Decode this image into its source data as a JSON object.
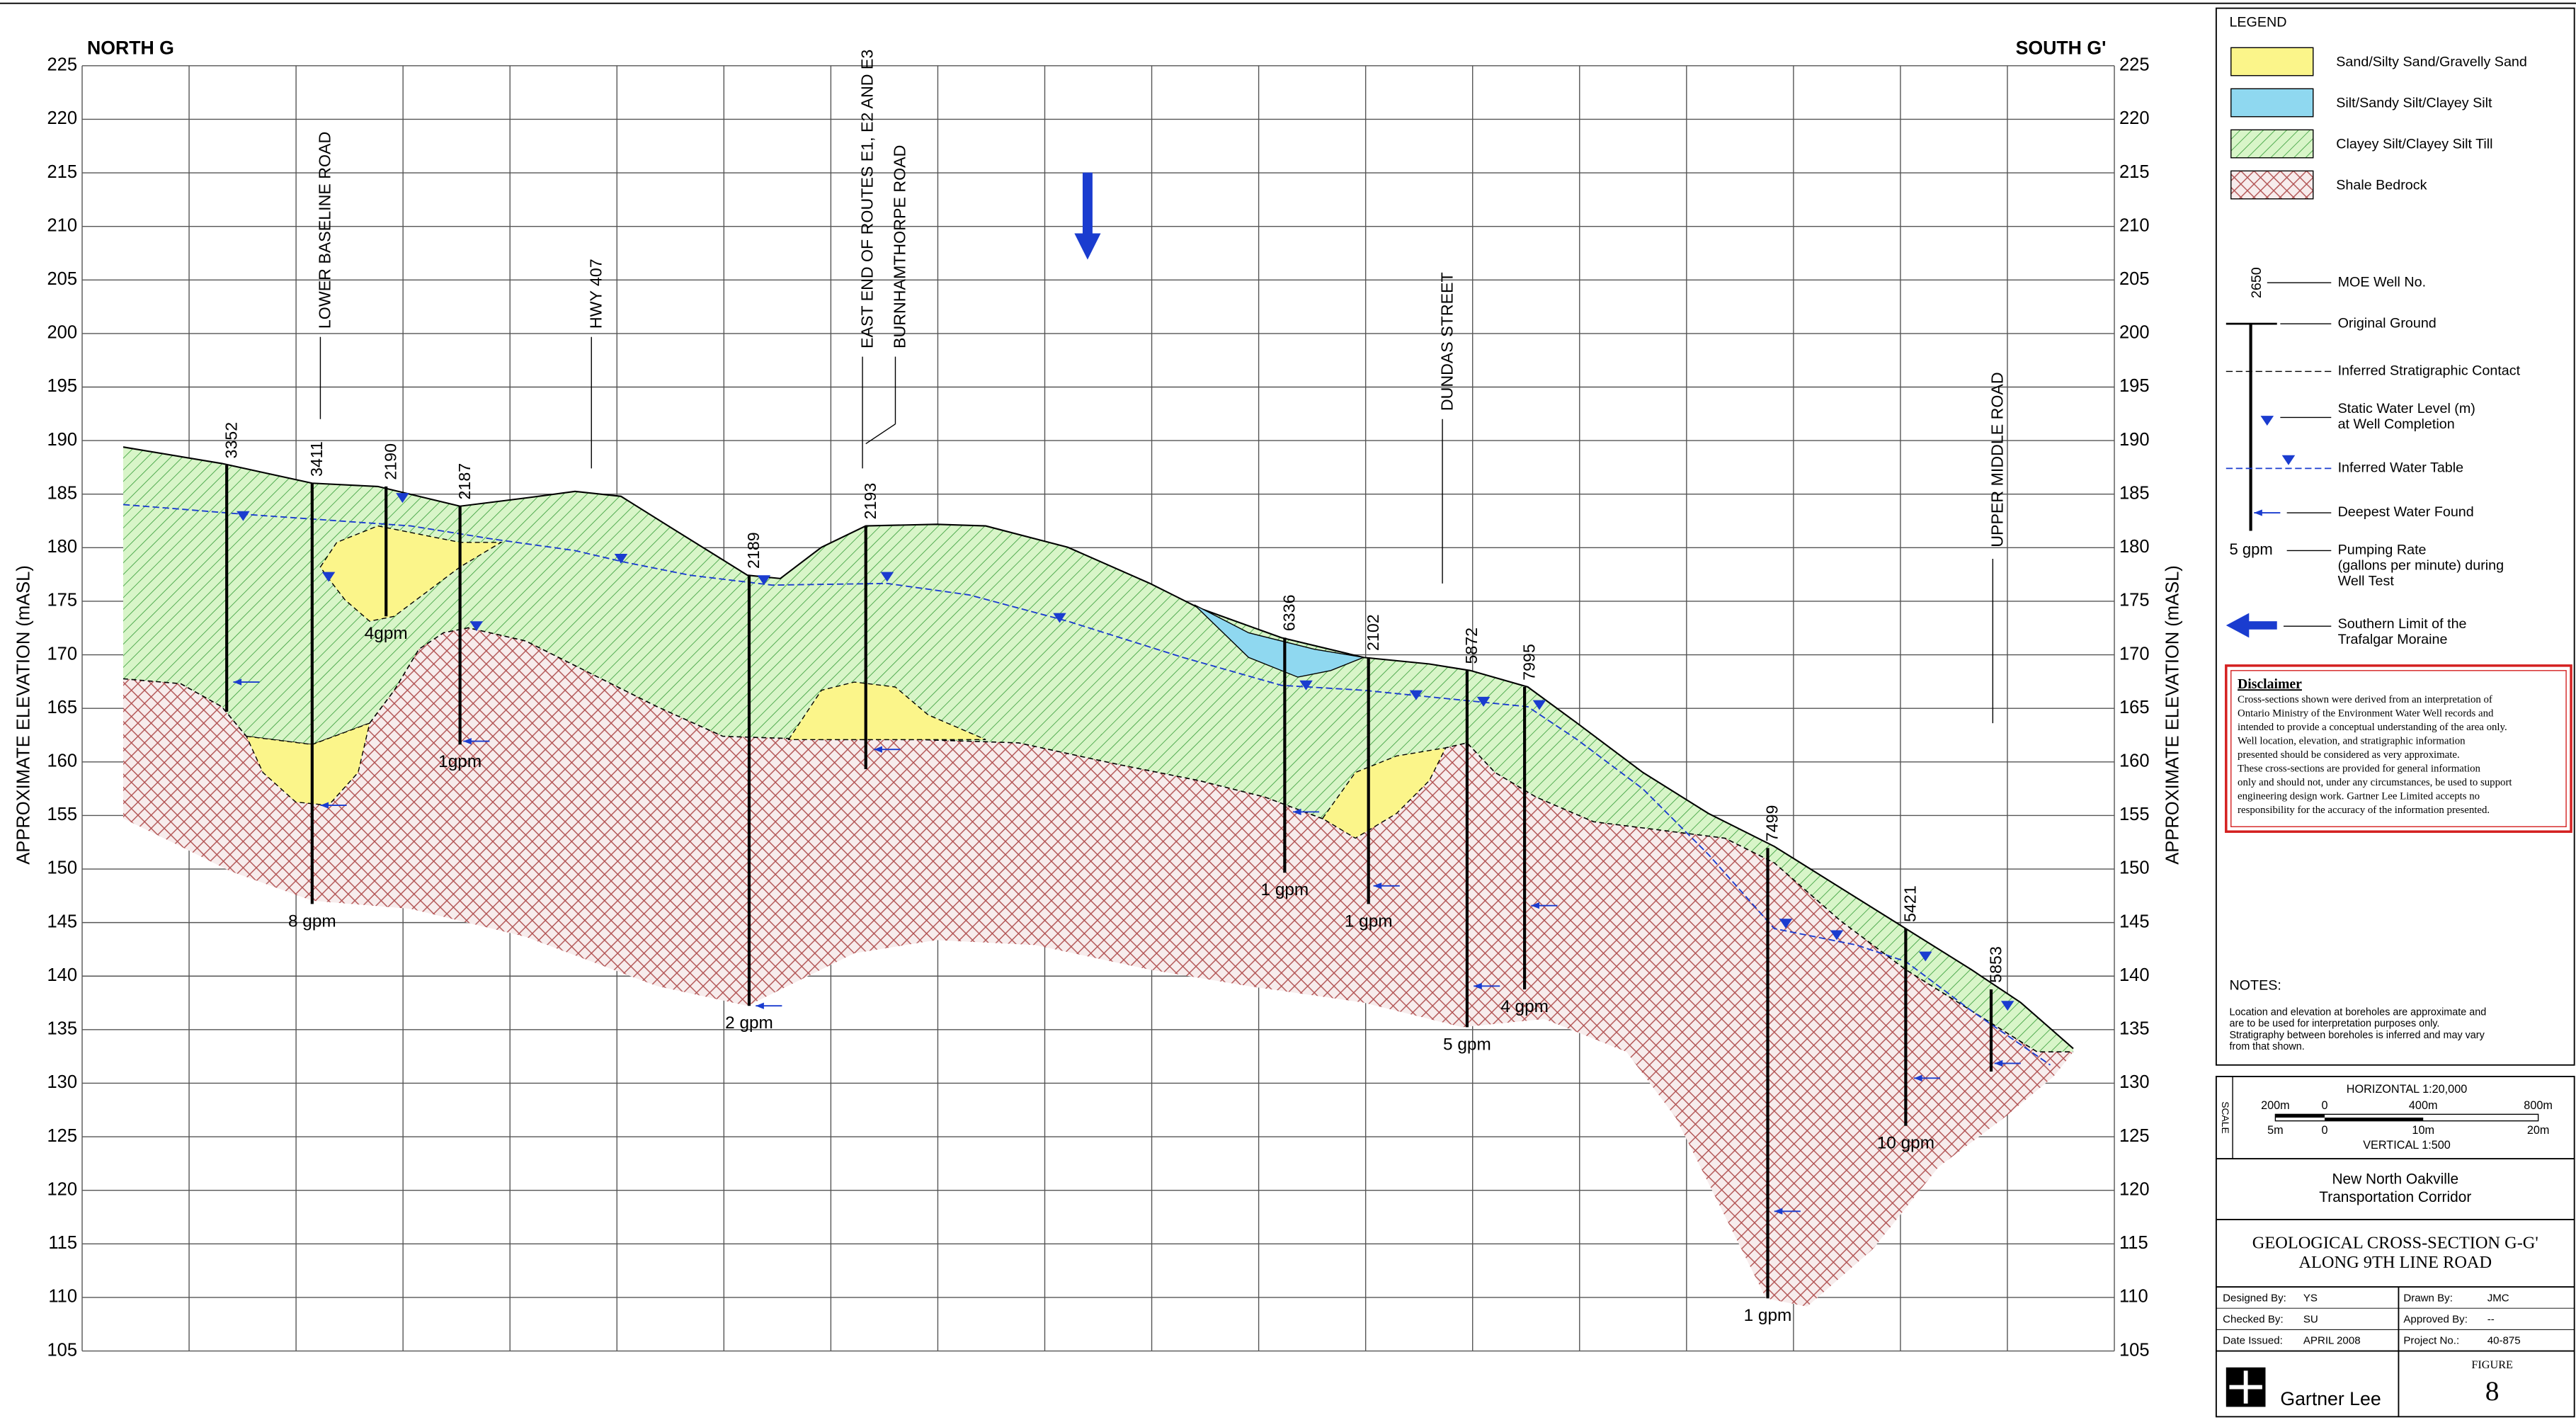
{
  "header": {
    "left": "NORTH G",
    "right": "SOUTH G'"
  },
  "axis": {
    "label": "APPROXIMATE ELEVATION (mASL)",
    "ticks": [
      225,
      220,
      215,
      210,
      205,
      200,
      195,
      190,
      185,
      180,
      175,
      170,
      165,
      160,
      155,
      150,
      145,
      140,
      135,
      130,
      125,
      120,
      115,
      110,
      105
    ]
  },
  "roads": [
    "LOWER BASELINE ROAD",
    "HWY 407",
    "EAST END OF ROUTES E1, E2 AND E3",
    "BURNHAMTHORPE ROAD",
    "DUNDAS STREET",
    "UPPER MIDDLE ROAD"
  ],
  "wells": [
    {
      "id": "3352"
    },
    {
      "id": "3411",
      "rate": "8 gpm"
    },
    {
      "id": "2190",
      "rate": "4gpm"
    },
    {
      "id": "2187",
      "rate": "1gpm"
    },
    {
      "id": "2189",
      "rate": "2 gpm"
    },
    {
      "id": "2193"
    },
    {
      "id": "6336",
      "rate": "1 gpm"
    },
    {
      "id": "2102",
      "rate": "1 gpm"
    },
    {
      "id": "5872",
      "rate": "5 gpm"
    },
    {
      "id": "7995",
      "rate": "4 gpm"
    },
    {
      "id": "7499",
      "rate": "1 gpm"
    },
    {
      "id": "5421",
      "rate": "10 gpm"
    },
    {
      "id": "5853"
    }
  ],
  "legend": {
    "title": "LEGEND",
    "units": [
      "Sand/Silty Sand/Gravelly Sand",
      "Silt/Sandy Silt/Clayey Silt",
      "Clayey Silt/Clayey Silt Till",
      "Shale Bedrock"
    ],
    "well_example": "2650",
    "symbols": [
      [
        "MOE Well No."
      ],
      [
        "Original Ground"
      ],
      [
        "Inferred Stratigraphic Contact"
      ],
      [
        "Static Water Level (m)",
        "at Well Completion"
      ],
      [
        "Inferred Water Table"
      ],
      [
        "Deepest Water Found"
      ],
      [
        "Pumping Rate",
        "(gallons per minute) during",
        "Well Test"
      ],
      [
        "Southern Limit of the",
        "Trafalgar Moraine"
      ]
    ],
    "rate_example": "5 gpm"
  },
  "disclaimer": {
    "title": "Disclaimer",
    "lines": [
      "Cross-sections shown were derived from an interpretation of",
      "Ontario Ministry of the Environment  Water Well records and",
      "intended to provide a conceptual understanding of the area only.",
      "Well location, elevation, and stratigraphic information",
      "presented should be considered as very approximate.",
      "These cross-sections are provided for general information",
      "only and should not, under any circumstances, be used to support",
      "engineering design work.  Gartner Lee Limited accepts no",
      "responsibility for the accuracy of the information presented."
    ]
  },
  "notes": {
    "title": "NOTES:",
    "lines": [
      "Location and elevation at boreholes are approximate and",
      "are to be used for interpretation purposes only.",
      "Stratigraphy between boreholes is inferred and may  vary",
      "from that shown."
    ]
  },
  "title_block": {
    "scale_word": "SCALE",
    "horizontal": "HORIZONTAL 1:20,000",
    "h_labels": [
      "200m",
      "0",
      "400m",
      "800m"
    ],
    "v_labels": [
      "5m",
      "0",
      "10m",
      "20m"
    ],
    "vertical": "VERTICAL 1:500",
    "project": [
      "New North Oakville",
      "Transportation Corridor"
    ],
    "title": [
      "GEOLOGICAL CROSS-SECTION G-G'",
      "ALONG 9TH LINE ROAD"
    ],
    "table": [
      [
        "Designed By:",
        "YS",
        "Drawn By:",
        "JMC"
      ],
      [
        "Checked By:",
        "SU",
        "Approved By:",
        "--"
      ],
      [
        "Date Issued:",
        "APRIL 2008",
        "Project No.:",
        "40-875"
      ]
    ],
    "company": "Gartner Lee",
    "figure_label": "FIGURE",
    "figure_number": "8"
  }
}
